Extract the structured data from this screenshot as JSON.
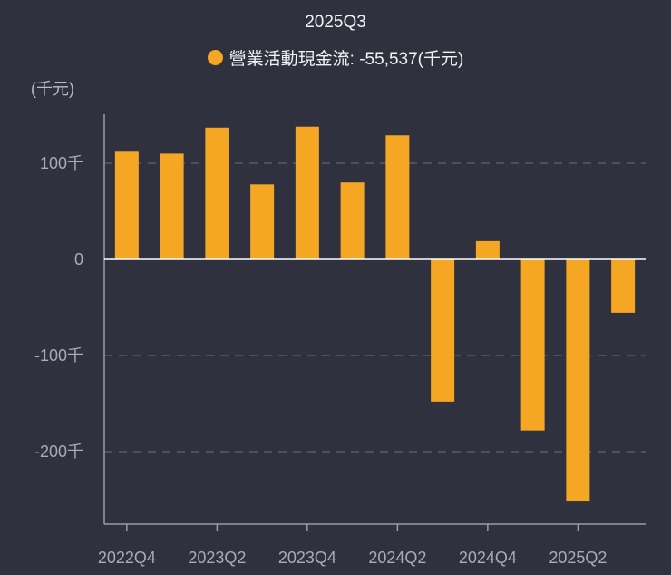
{
  "header": {
    "title": "2025Q3"
  },
  "legend": {
    "label": "營業活動現金流: -55,537(千元)",
    "color": "#f5a623"
  },
  "unit": "(千元)",
  "chart_data": {
    "type": "bar",
    "title": "2025Q3",
    "series_name": "營業活動現金流",
    "ylabel": "(千元)",
    "ylim": [
      -275,
      150
    ],
    "y_ticks": [
      {
        "value": 100,
        "label": "100千"
      },
      {
        "value": 0,
        "label": "0"
      },
      {
        "value": -100,
        "label": "-100千"
      },
      {
        "value": -200,
        "label": "-200千"
      }
    ],
    "categories": [
      "2022Q4",
      "2023Q1",
      "2023Q2",
      "2023Q3",
      "2023Q4",
      "2024Q1",
      "2024Q2",
      "2024Q3",
      "2024Q4",
      "2025Q1",
      "2025Q2",
      "2025Q3"
    ],
    "x_tick_labels": [
      "2022Q4",
      "2023Q2",
      "2023Q4",
      "2024Q2",
      "2024Q4",
      "2025Q2"
    ],
    "values": [
      112,
      110,
      137,
      78,
      138,
      80,
      129,
      -148,
      19,
      -178,
      -251,
      -55.537
    ],
    "bar_color": "#f5a623",
    "grid": true
  }
}
